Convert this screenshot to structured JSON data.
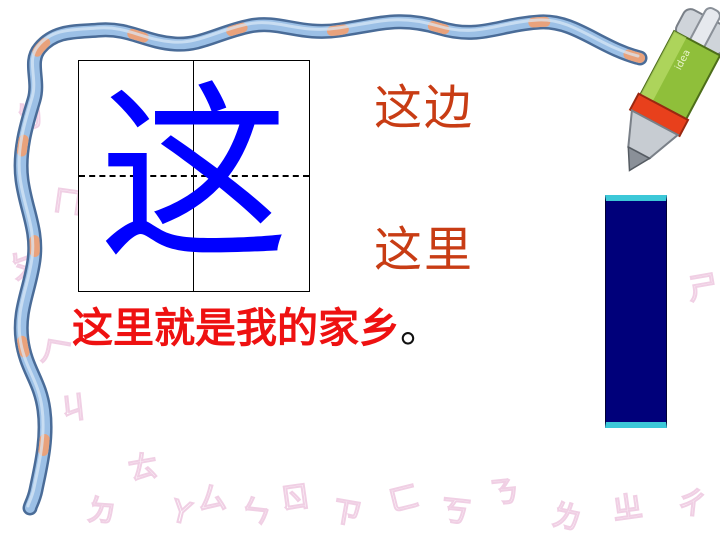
{
  "main_character": "这",
  "words": [
    "这边",
    "这里"
  ],
  "sentence": {
    "text": "这里就是我的家乡",
    "punctuation": "。"
  },
  "pen_label": "idea",
  "colors": {
    "character": "#0000ff",
    "words": "#c83c14",
    "sentence": "#ee1111",
    "bar": "#00007a",
    "bar_edge": "#3cc8d8",
    "rope": "#7aa3d2",
    "rope_band": "#e8a07a",
    "pen_body": "#8fbf3a",
    "pen_band": "#e8401c",
    "background_glyphs": "#f2d6e8"
  },
  "background_glyphs": [
    "ㄅ",
    "ㄇ",
    "ㄆ",
    "ㄏ",
    "ㄐ",
    "ㄉ",
    "ㄊ",
    "Y",
    "ㄙ",
    "ㄣ",
    "ㄖ",
    "ㄗ",
    "ㄈ",
    "ㄎ",
    "ㄋ",
    "ㄌ",
    "ㄓ",
    "ㄔ",
    "ㄕ"
  ]
}
